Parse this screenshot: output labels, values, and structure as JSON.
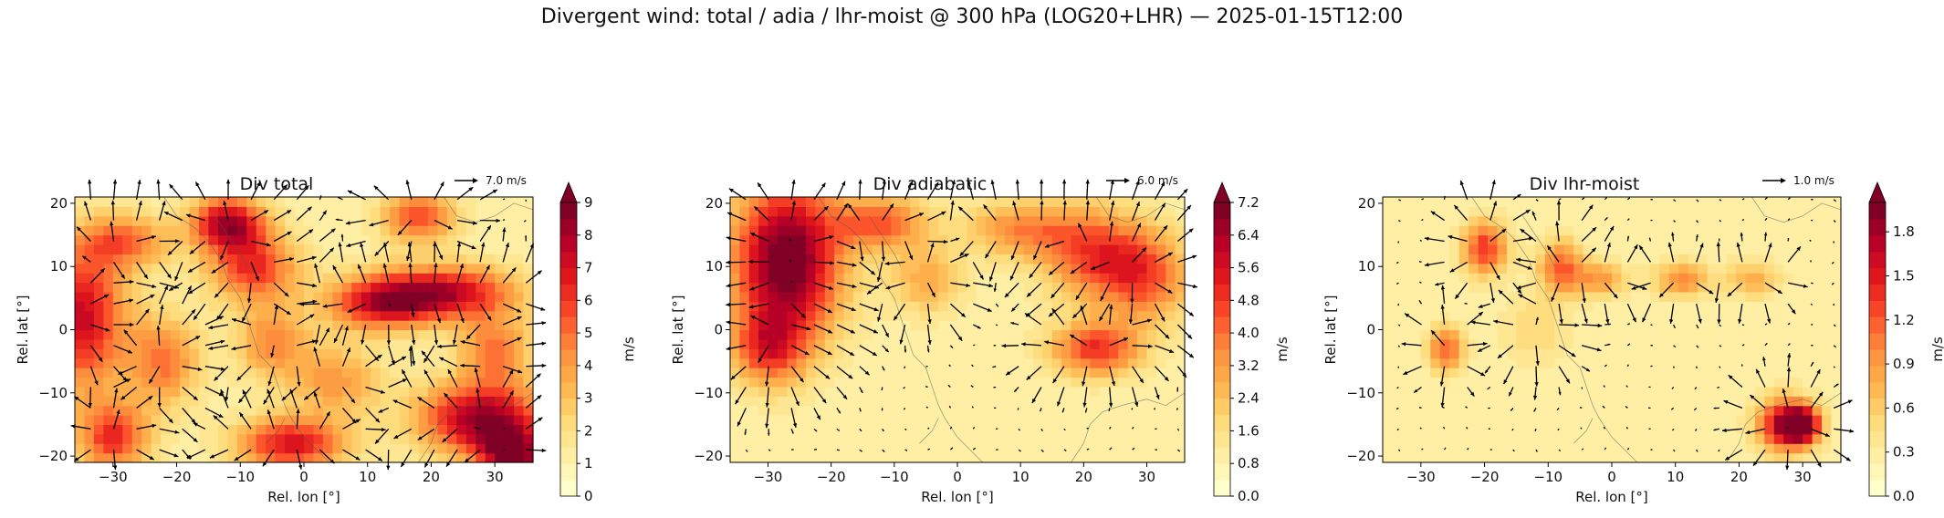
{
  "suptitle": "Divergent wind: total / adia / lhr-moist @ 300 hPa (LOG20+LHR) — 2025-01-15T12:00",
  "chart_data": [
    {
      "type": "heatmap",
      "title": "Div total",
      "xlabel": "Rel. lon [°]",
      "ylabel": "Rel. lat [°]",
      "xlim": [
        -36,
        36
      ],
      "ylim": [
        -21,
        21
      ],
      "xticks": [
        -30,
        -20,
        -10,
        0,
        10,
        20,
        30
      ],
      "yticks": [
        -20,
        -10,
        0,
        10,
        20
      ],
      "colorbar": {
        "label": "m/s",
        "min": 0,
        "max": 9,
        "extend": "max",
        "ticks": [
          "0",
          "1",
          "2",
          "3",
          "4",
          "5",
          "6",
          "7",
          "8",
          "9"
        ]
      },
      "quiver_key": "7.0 m/s",
      "colormap": "YlOrRd",
      "field_description": "speed maxima at ~(-35,0), (-12,17), (-8,10), (22,6), (14,4), (28,-14), (32,-20), (-2,-18), (-30,-18)"
    },
    {
      "type": "heatmap",
      "title": "Div adiabatic",
      "xlabel": "Rel. lon [°]",
      "ylabel": "Rel. lat [°]",
      "xlim": [
        -36,
        36
      ],
      "ylim": [
        -21,
        21
      ],
      "xticks": [
        -30,
        -20,
        -10,
        0,
        10,
        20,
        30
      ],
      "yticks": [
        -20,
        -10,
        0,
        10,
        20
      ],
      "colorbar": {
        "label": "m/s",
        "min": 0,
        "max": 7.2,
        "extend": "max",
        "ticks": [
          "0.0",
          "0.8",
          "1.6",
          "2.4",
          "3.2",
          "4.0",
          "4.8",
          "5.6",
          "6.4",
          "7.2"
        ]
      },
      "quiver_key": "6.0 m/s",
      "colormap": "YlOrRd",
      "field_description": "dominant maximum at ~(-27,11); secondary maxima at (22,12), (22,-3), (-33,-3)"
    },
    {
      "type": "heatmap",
      "title": "Div lhr-moist",
      "xlabel": "Rel. lon [°]",
      "ylabel": "Rel. lat [°]",
      "xlim": [
        -36,
        36
      ],
      "ylim": [
        -21,
        21
      ],
      "xticks": [
        -30,
        -20,
        -10,
        0,
        10,
        20,
        30
      ],
      "yticks": [
        -20,
        -10,
        0,
        10,
        20
      ],
      "colorbar": {
        "label": "m/s",
        "min": 0,
        "max": 2.0,
        "extend": "max",
        "ticks": [
          "0.0",
          "0.3",
          "0.6",
          "0.9",
          "1.2",
          "1.5",
          "1.8"
        ]
      },
      "quiver_key": "1.0 m/s",
      "colormap": "YlOrRd",
      "field_description": "local maxima at ~(-20,13), (-8,10), (-26,-3), (27,-15), (30,-15), (11,8)"
    }
  ]
}
